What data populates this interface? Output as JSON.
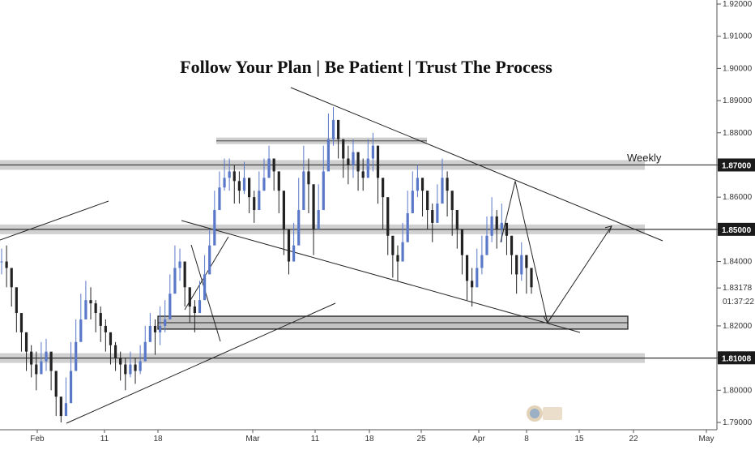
{
  "chart_data": {
    "type": "candlestick",
    "title": "Follow Your Plan | Be Patient | Trust The Process",
    "ylim": [
      1.79,
      1.925
    ],
    "y_ticks": [
      "1.92000",
      "1.91000",
      "1.90000",
      "1.89000",
      "1.88000",
      "1.87000",
      "1.86000",
      "1.85000",
      "1.84000",
      "1.83178",
      "1.82000",
      "1.81008",
      "1.80000",
      "1.79000"
    ],
    "x_ticks": [
      "Feb",
      "11",
      "18",
      "Mar",
      "11",
      "18",
      "25",
      "Apr",
      "8",
      "15",
      "22",
      "May"
    ],
    "highlighted_levels": [
      {
        "label": "1.87000",
        "value": 1.87
      },
      {
        "label": "1.85000",
        "value": 1.85
      },
      {
        "label": "1.81008",
        "value": 1.81008
      }
    ],
    "last_price": {
      "value": "1.83178",
      "countdown": "01:37:22"
    },
    "annotations": [
      {
        "text": "Weekly"
      }
    ],
    "zones": [
      {
        "name": "resistance-weekly",
        "value": 1.87
      },
      {
        "name": "resistance-mid",
        "value": 1.85
      },
      {
        "name": "support-low",
        "value": 1.81
      },
      {
        "name": "top-resistance",
        "value": 1.8775
      },
      {
        "name": "demand-zone",
        "from": 1.819,
        "to": 1.823
      }
    ],
    "ohlc_path": [
      [
        1.84,
        1.844,
        1.836
      ],
      [
        1.838,
        1.845,
        1.832
      ],
      [
        1.832,
        1.836,
        1.826
      ],
      [
        1.824,
        1.828,
        1.818
      ],
      [
        1.818,
        1.822,
        1.812
      ],
      [
        1.812,
        1.818,
        1.806
      ],
      [
        1.808,
        1.814,
        1.804
      ],
      [
        1.805,
        1.812,
        1.8
      ],
      [
        1.809,
        1.815,
        1.805
      ],
      [
        1.812,
        1.816,
        1.806
      ],
      [
        1.806,
        1.81,
        1.8
      ],
      [
        1.798,
        1.806,
        1.792
      ],
      [
        1.792,
        1.798,
        1.79
      ],
      [
        1.796,
        1.804,
        1.794
      ],
      [
        1.806,
        1.815,
        1.804
      ],
      [
        1.815,
        1.822,
        1.812
      ],
      [
        1.822,
        1.83,
        1.818
      ],
      [
        1.828,
        1.834,
        1.824
      ],
      [
        1.827,
        1.832,
        1.822
      ],
      [
        1.824,
        1.828,
        1.818
      ],
      [
        1.82,
        1.826,
        1.815
      ],
      [
        1.818,
        1.822,
        1.812
      ],
      [
        1.814,
        1.818,
        1.808
      ],
      [
        1.81,
        1.815,
        1.806
      ],
      [
        1.808,
        1.812,
        1.803
      ],
      [
        1.805,
        1.81,
        1.8
      ],
      [
        1.808,
        1.812,
        1.804
      ],
      [
        1.806,
        1.81,
        1.802
      ],
      [
        1.809,
        1.814,
        1.805
      ],
      [
        1.815,
        1.82,
        1.811
      ],
      [
        1.82,
        1.824,
        1.815
      ],
      [
        1.818,
        1.822,
        1.811
      ],
      [
        1.82,
        1.826,
        1.814
      ],
      [
        1.822,
        1.828,
        1.818
      ],
      [
        1.83,
        1.836,
        1.826
      ],
      [
        1.838,
        1.845,
        1.834
      ],
      [
        1.84,
        1.844,
        1.834
      ],
      [
        1.832,
        1.838,
        1.826
      ],
      [
        1.826,
        1.83,
        1.821
      ],
      [
        1.824,
        1.828,
        1.818
      ],
      [
        1.828,
        1.834,
        1.824
      ],
      [
        1.836,
        1.842,
        1.832
      ],
      [
        1.845,
        1.85,
        1.84
      ],
      [
        1.856,
        1.862,
        1.852
      ],
      [
        1.863,
        1.868,
        1.858
      ],
      [
        1.866,
        1.872,
        1.862
      ],
      [
        1.868,
        1.872,
        1.862
      ],
      [
        1.865,
        1.87,
        1.858
      ],
      [
        1.862,
        1.868,
        1.858
      ],
      [
        1.866,
        1.871,
        1.861
      ],
      [
        1.86,
        1.866,
        1.855
      ],
      [
        1.856,
        1.862,
        1.852
      ],
      [
        1.862,
        1.868,
        1.858
      ],
      [
        1.866,
        1.872,
        1.862
      ],
      [
        1.872,
        1.876,
        1.866
      ],
      [
        1.868,
        1.872,
        1.862
      ],
      [
        1.862,
        1.868,
        1.855
      ],
      [
        1.85,
        1.858,
        1.842
      ],
      [
        1.84,
        1.846,
        1.836
      ],
      [
        1.845,
        1.852,
        1.84
      ],
      [
        1.856,
        1.866,
        1.852
      ],
      [
        1.868,
        1.876,
        1.864
      ],
      [
        1.864,
        1.872,
        1.855
      ],
      [
        1.85,
        1.858,
        1.842
      ],
      [
        1.856,
        1.864,
        1.852
      ],
      [
        1.868,
        1.876,
        1.864
      ],
      [
        1.878,
        1.886,
        1.872
      ],
      [
        1.884,
        1.888,
        1.876
      ],
      [
        1.878,
        1.882,
        1.872
      ],
      [
        1.872,
        1.878,
        1.866
      ],
      [
        1.87,
        1.876,
        1.864
      ],
      [
        1.874,
        1.878,
        1.866
      ],
      [
        1.868,
        1.872,
        1.862
      ],
      [
        1.866,
        1.872,
        1.862
      ],
      [
        1.872,
        1.878,
        1.866
      ],
      [
        1.876,
        1.88,
        1.868
      ],
      [
        1.866,
        1.872,
        1.858
      ],
      [
        1.86,
        1.864,
        1.85
      ],
      [
        1.848,
        1.856,
        1.842
      ],
      [
        1.842,
        1.848,
        1.835
      ],
      [
        1.84,
        1.845,
        1.834
      ],
      [
        1.846,
        1.852,
        1.842
      ],
      [
        1.855,
        1.862,
        1.85
      ],
      [
        1.862,
        1.868,
        1.856
      ],
      [
        1.866,
        1.87,
        1.86
      ],
      [
        1.862,
        1.866,
        1.854
      ],
      [
        1.856,
        1.862,
        1.85
      ],
      [
        1.852,
        1.858,
        1.846
      ],
      [
        1.858,
        1.864,
        1.852
      ],
      [
        1.866,
        1.872,
        1.862
      ],
      [
        1.862,
        1.868,
        1.854
      ],
      [
        1.856,
        1.86,
        1.848
      ],
      [
        1.85,
        1.856,
        1.844
      ],
      [
        1.842,
        1.848,
        1.836
      ],
      [
        1.834,
        1.84,
        1.828
      ],
      [
        1.832,
        1.838,
        1.826
      ],
      [
        1.838,
        1.844,
        1.832
      ],
      [
        1.842,
        1.848,
        1.836
      ],
      [
        1.848,
        1.854,
        1.842
      ],
      [
        1.854,
        1.86,
        1.846
      ],
      [
        1.85,
        1.856,
        1.844
      ],
      [
        1.852,
        1.858,
        1.846
      ],
      [
        1.848,
        1.852,
        1.842
      ],
      [
        1.842,
        1.848,
        1.836
      ],
      [
        1.836,
        1.842,
        1.83
      ],
      [
        1.842,
        1.846,
        1.834
      ],
      [
        1.838,
        1.842,
        1.83
      ],
      [
        1.832,
        1.836,
        1.83
      ]
    ],
    "projection_path": [
      1.846,
      1.865,
      1.821,
      1.851
    ]
  },
  "colors": {
    "up_candle": "#5a78c8",
    "down_candle": "#222222",
    "zone_fill": "#c8c8c8",
    "zone_line": "#333333",
    "trendline": "#222222",
    "label_bg": "#1a1a1a"
  }
}
